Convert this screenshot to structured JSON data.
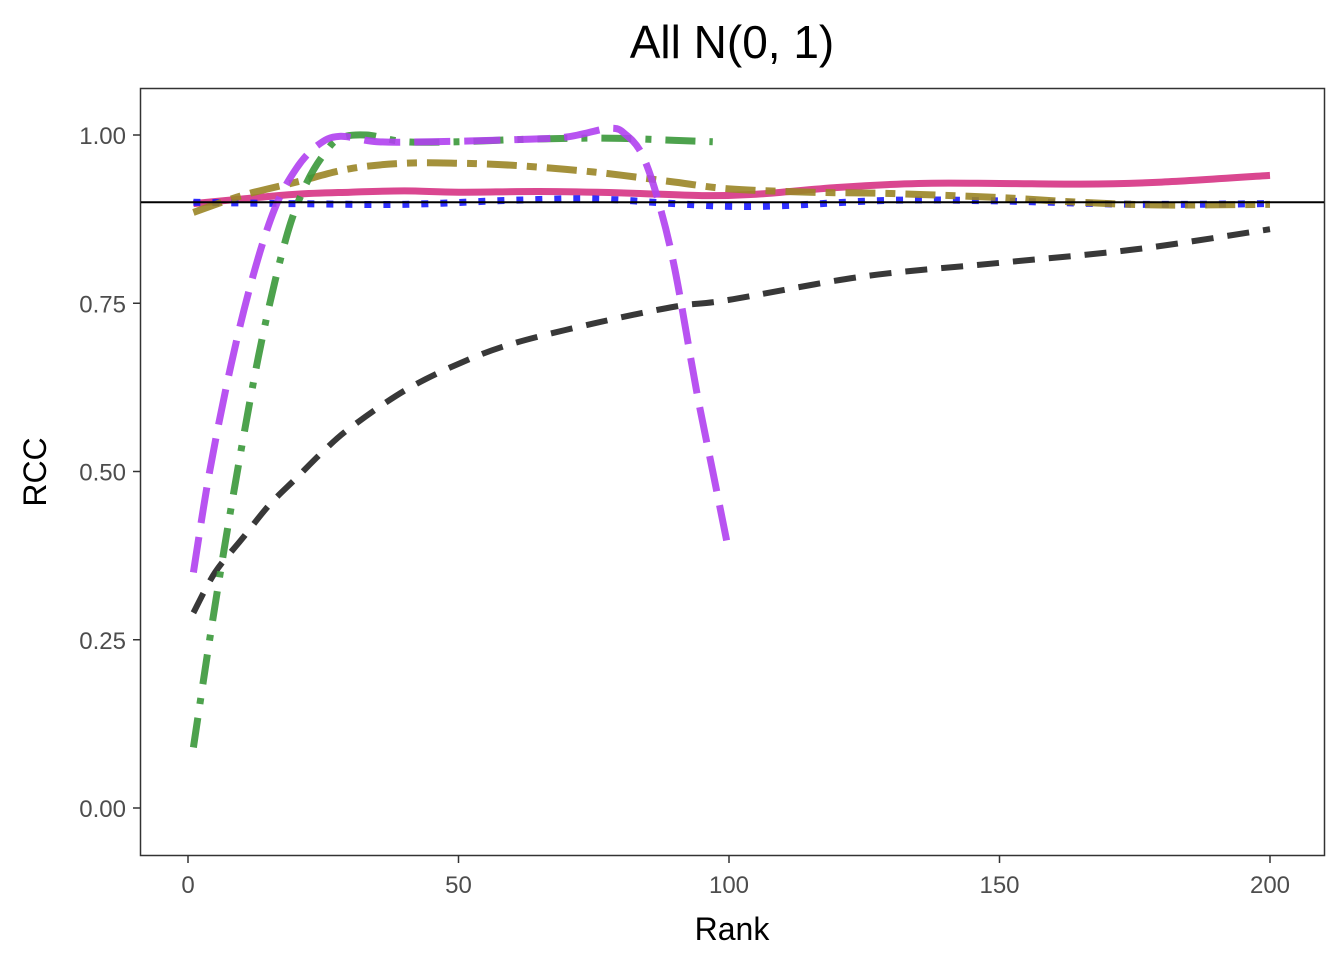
{
  "chart_data": {
    "type": "line",
    "title": "All N(0, 1)",
    "xlabel": "Rank",
    "ylabel": "RCC",
    "xlim": [
      -8,
      210
    ],
    "ylim": [
      -0.07,
      1.07
    ],
    "xticks": [
      0,
      50,
      100,
      150,
      200
    ],
    "xtick_labels": [
      "0",
      "50",
      "100",
      "150",
      "200"
    ],
    "yticks": [
      0,
      0.25,
      0.5,
      0.75,
      1.0
    ],
    "ytick_labels": [
      "0.00",
      "0.25",
      "0.50",
      "0.75",
      "1.00"
    ],
    "grid": false,
    "legend": "none",
    "reference_line": {
      "y": 0.9,
      "color": "#000000"
    },
    "series": [
      {
        "name": "black-dashed",
        "color": "#222222",
        "dash": "22 14",
        "width": 6,
        "x": [
          1,
          5,
          10,
          15,
          20,
          25,
          30,
          40,
          50,
          60,
          75,
          90,
          100,
          125,
          150,
          175,
          200
        ],
        "y": [
          0.29,
          0.35,
          0.4,
          0.45,
          0.49,
          0.53,
          0.565,
          0.62,
          0.66,
          0.69,
          0.72,
          0.745,
          0.755,
          0.79,
          0.81,
          0.83,
          0.86
        ]
      },
      {
        "name": "magenta-solid",
        "color": "#d63384",
        "dash": "",
        "width": 7,
        "x": [
          1,
          10,
          20,
          30,
          40,
          50,
          65,
          80,
          95,
          105,
          120,
          135,
          150,
          165,
          180,
          200
        ],
        "y": [
          0.898,
          0.905,
          0.912,
          0.915,
          0.917,
          0.915,
          0.916,
          0.914,
          0.91,
          0.912,
          0.922,
          0.928,
          0.928,
          0.927,
          0.93,
          0.94
        ]
      },
      {
        "name": "blue-dotted",
        "color": "#1a1aff",
        "dash": "7 12",
        "width": 7,
        "x": [
          1,
          20,
          40,
          60,
          75,
          90,
          100,
          110,
          130,
          150,
          175,
          200
        ],
        "y": [
          0.9,
          0.898,
          0.897,
          0.903,
          0.905,
          0.898,
          0.894,
          0.895,
          0.903,
          0.902,
          0.897,
          0.898
        ]
      },
      {
        "name": "olive-longdash",
        "color": "#9a8526",
        "dash": "30 10 10 10",
        "width": 7,
        "x": [
          1,
          10,
          20,
          30,
          40,
          50,
          60,
          75,
          90,
          100,
          115,
          130,
          150,
          165,
          180,
          200
        ],
        "y": [
          0.885,
          0.91,
          0.93,
          0.95,
          0.958,
          0.958,
          0.955,
          0.945,
          0.93,
          0.92,
          0.915,
          0.913,
          0.907,
          0.9,
          0.896,
          0.897
        ]
      },
      {
        "name": "green-dotdash",
        "color": "#3a983a",
        "dash": "30 14 6 14",
        "width": 7,
        "x": [
          1,
          4,
          7,
          10,
          13,
          16,
          19,
          22,
          25,
          28,
          33,
          40,
          50,
          60,
          70,
          80,
          90,
          97
        ],
        "y": [
          0.09,
          0.25,
          0.4,
          0.54,
          0.67,
          0.78,
          0.87,
          0.93,
          0.97,
          0.995,
          1.0,
          0.99,
          0.99,
          0.993,
          0.995,
          0.995,
          0.992,
          0.99
        ]
      },
      {
        "name": "purple-longdash",
        "color": "#b040f0",
        "dash": "36 14",
        "width": 7,
        "x": [
          1,
          4,
          8,
          12,
          16,
          20,
          24,
          28,
          35,
          45,
          60,
          70,
          78,
          81,
          84,
          87,
          90,
          94,
          97,
          100
        ],
        "y": [
          0.35,
          0.5,
          0.66,
          0.79,
          0.89,
          0.95,
          0.985,
          0.998,
          0.99,
          0.99,
          0.993,
          0.997,
          1.01,
          1.0,
          0.97,
          0.9,
          0.8,
          0.62,
          0.5,
          0.38
        ]
      }
    ]
  }
}
